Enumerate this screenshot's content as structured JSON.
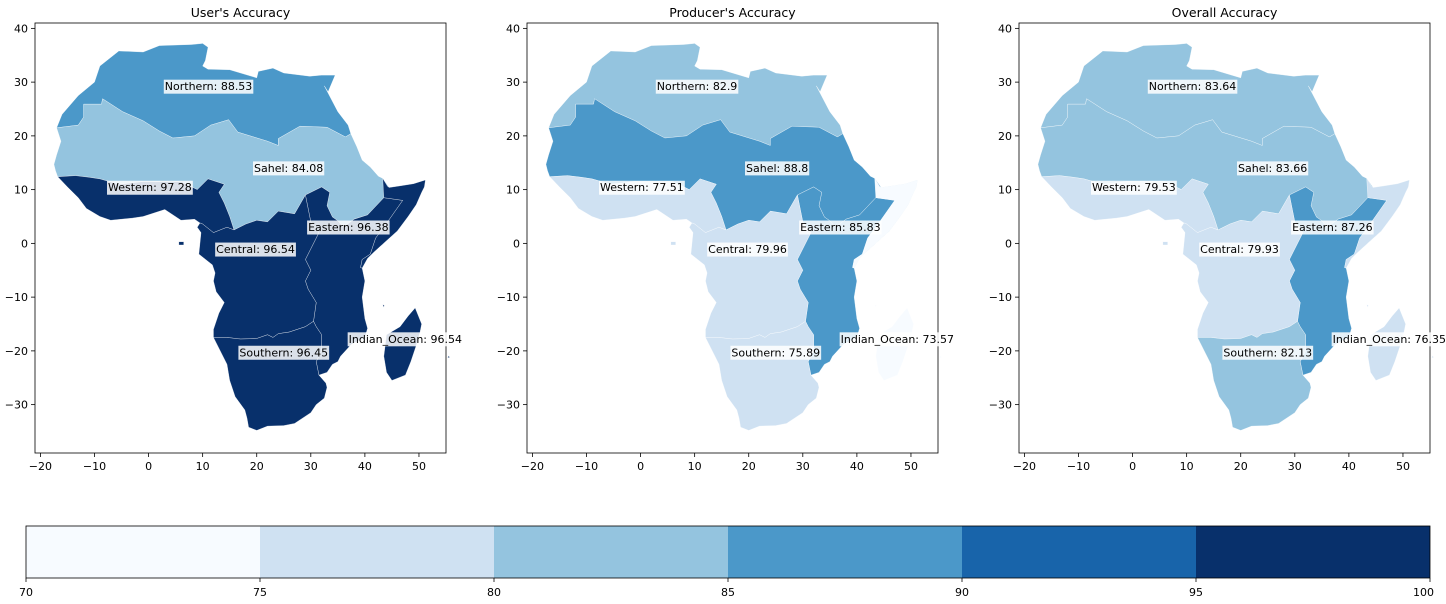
{
  "maps": [
    {
      "title": "User's Accuracy",
      "regions": [
        {
          "name": "Northern",
          "label": "Northern: 88.53",
          "value": 88.53
        },
        {
          "name": "Sahel",
          "label": "Sahel: 84.08",
          "value": 84.08
        },
        {
          "name": "Western",
          "label": "Western: 97.28",
          "value": 97.28
        },
        {
          "name": "Eastern",
          "label": "Eastern: 96.38",
          "value": 96.38
        },
        {
          "name": "Central",
          "label": "Central: 96.54",
          "value": 96.54
        },
        {
          "name": "Southern",
          "label": "Southern: 96.45",
          "value": 96.45
        },
        {
          "name": "Indian_Ocean",
          "label": "Indian_Ocean: 96.54",
          "value": 96.54
        }
      ]
    },
    {
      "title": "Producer's Accuracy",
      "regions": [
        {
          "name": "Northern",
          "label": "Northern: 82.9",
          "value": 82.9
        },
        {
          "name": "Sahel",
          "label": "Sahel: 88.8",
          "value": 88.8
        },
        {
          "name": "Western",
          "label": "Western: 77.51",
          "value": 77.51
        },
        {
          "name": "Eastern",
          "label": "Eastern: 85.83",
          "value": 85.83
        },
        {
          "name": "Central",
          "label": "Central: 79.96",
          "value": 79.96
        },
        {
          "name": "Southern",
          "label": "Southern: 75.89",
          "value": 75.89
        },
        {
          "name": "Indian_Ocean",
          "label": "Indian_Ocean: 73.57",
          "value": 73.57
        }
      ]
    },
    {
      "title": "Overall Accuracy",
      "regions": [
        {
          "name": "Northern",
          "label": "Northern: 83.64",
          "value": 83.64
        },
        {
          "name": "Sahel",
          "label": "Sahel: 83.66",
          "value": 83.66
        },
        {
          "name": "Western",
          "label": "Western: 79.53",
          "value": 79.53
        },
        {
          "name": "Eastern",
          "label": "Eastern: 87.26",
          "value": 87.26
        },
        {
          "name": "Central",
          "label": "Central: 79.93",
          "value": 79.93
        },
        {
          "name": "Southern",
          "label": "Southern: 82.13",
          "value": 82.13
        },
        {
          "name": "Indian_Ocean",
          "label": "Indian_Ocean: 76.35",
          "value": 76.35
        }
      ]
    }
  ],
  "axes": {
    "x_ticks": [
      "−20",
      "−10",
      "0",
      "10",
      "20",
      "30",
      "40",
      "50"
    ],
    "y_ticks": [
      "40",
      "30",
      "20",
      "10",
      "0",
      "−10",
      "−20",
      "−30"
    ],
    "xlim": [
      -21,
      55
    ],
    "ylim": [
      -39,
      41
    ]
  },
  "colorbar": {
    "ticks": [
      "70",
      "75",
      "80",
      "85",
      "90",
      "95",
      "100"
    ],
    "bins": [
      {
        "from": 70,
        "to": 75,
        "color": "#f7fbff"
      },
      {
        "from": 75,
        "to": 80,
        "color": "#cfe1f2"
      },
      {
        "from": 80,
        "to": 85,
        "color": "#94c4df"
      },
      {
        "from": 85,
        "to": 90,
        "color": "#4b98c9"
      },
      {
        "from": 90,
        "to": 95,
        "color": "#1864aa"
      },
      {
        "from": 95,
        "to": 100,
        "color": "#08306b"
      }
    ]
  }
}
